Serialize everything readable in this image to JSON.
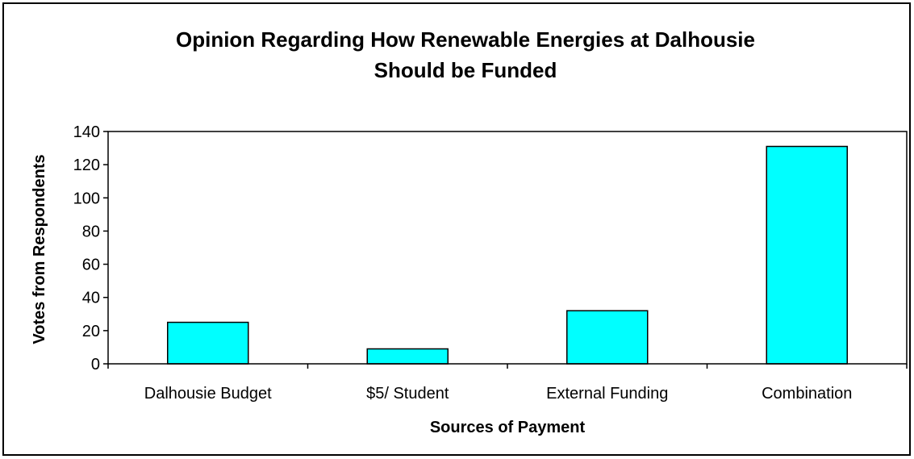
{
  "chart_data": {
    "type": "bar",
    "title_lines": [
      "Opinion Regarding How Renewable Energies at Dalhousie",
      "Should be Funded"
    ],
    "xlabel": "Sources of Payment",
    "ylabel": "Votes from Respondents",
    "categories": [
      "Dalhousie Budget",
      "$5/ Student",
      "External Funding",
      "Combination"
    ],
    "values": [
      25,
      9,
      32,
      131
    ],
    "ylim": [
      0,
      140
    ],
    "yticks": [
      0,
      20,
      40,
      60,
      80,
      100,
      120,
      140
    ],
    "grid": false,
    "legend": "none",
    "bar_color": "#00FFFF",
    "bar_edge_color": "#000000"
  }
}
